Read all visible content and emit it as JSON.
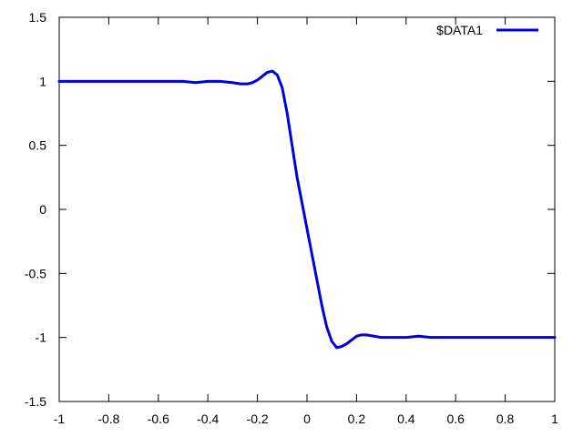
{
  "chart_data": {
    "type": "line",
    "title": "",
    "xlabel": "",
    "ylabel": "",
    "xlim": [
      -1,
      1
    ],
    "ylim": [
      -1.5,
      1.5
    ],
    "x_ticks": [
      -1,
      -0.8,
      -0.6,
      -0.4,
      -0.2,
      0,
      0.2,
      0.4,
      0.6,
      0.8,
      1
    ],
    "x_tick_labels": [
      "-1",
      "-0.8",
      "-0.6",
      "-0.4",
      "-0.2",
      "0",
      "0.2",
      "0.4",
      "0.6",
      "0.8",
      "1"
    ],
    "y_ticks": [
      -1.5,
      -1,
      -0.5,
      0,
      0.5,
      1,
      1.5
    ],
    "y_tick_labels": [
      "-1.5",
      "-1",
      "-0.5",
      "0",
      "0.5",
      "1",
      "1.5"
    ],
    "grid": false,
    "legend_position": "top-right",
    "series": [
      {
        "name": "$DATA1",
        "color": "#0000dd",
        "x": [
          -1,
          -0.9,
          -0.8,
          -0.7,
          -0.6,
          -0.5,
          -0.45,
          -0.4,
          -0.35,
          -0.3,
          -0.27,
          -0.24,
          -0.22,
          -0.2,
          -0.18,
          -0.16,
          -0.14,
          -0.12,
          -0.1,
          -0.08,
          -0.06,
          -0.04,
          -0.02,
          0,
          0.02,
          0.04,
          0.06,
          0.08,
          0.1,
          0.12,
          0.14,
          0.16,
          0.18,
          0.2,
          0.22,
          0.24,
          0.27,
          0.3,
          0.35,
          0.4,
          0.45,
          0.5,
          0.6,
          0.7,
          0.8,
          0.9,
          1
        ],
        "y": [
          1,
          1,
          1,
          1,
          1,
          1,
          0.99,
          1,
          1,
          0.99,
          0.98,
          0.98,
          0.99,
          1.01,
          1.04,
          1.07,
          1.08,
          1.05,
          0.95,
          0.75,
          0.5,
          0.25,
          0.05,
          -0.15,
          -0.35,
          -0.55,
          -0.75,
          -0.92,
          -1.03,
          -1.08,
          -1.07,
          -1.05,
          -1.02,
          -0.99,
          -0.98,
          -0.98,
          -0.99,
          -1,
          -1,
          -1,
          -0.99,
          -1,
          -1,
          -1,
          -1,
          -1,
          -1
        ]
      }
    ]
  }
}
